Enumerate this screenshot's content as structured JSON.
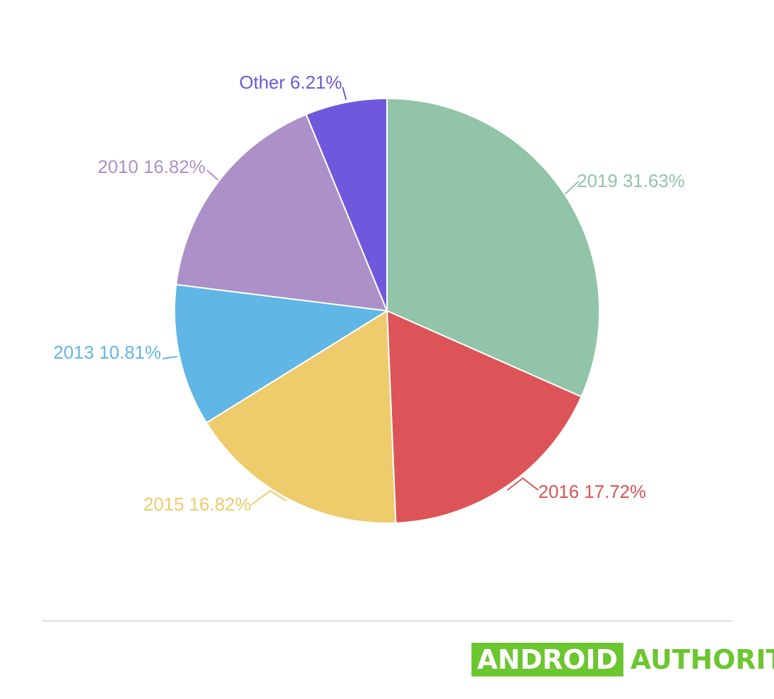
{
  "chart_data": {
    "type": "pie",
    "slices": [
      {
        "label": "2019 31.63%",
        "value": 31.63,
        "color": "#91c4a8"
      },
      {
        "label": "2016 17.72%",
        "value": 17.72,
        "color": "#dc5457"
      },
      {
        "label": "2015 16.82%",
        "value": 16.82,
        "color": "#eecb6b"
      },
      {
        "label": "2013 10.81%",
        "value": 10.81,
        "color": "#60b6e4"
      },
      {
        "label": "2010 16.82%",
        "value": 16.82,
        "color": "#ab91c7"
      },
      {
        "label": "Other 6.21%",
        "value": 6.21,
        "color": "#7058dc"
      }
    ],
    "start_angle": "top",
    "direction": "clockwise"
  },
  "branding": {
    "box_text": "ANDROID",
    "text": "AUTHORITY",
    "box_color": "#6cc62f",
    "text_color": "#6cc62f"
  }
}
